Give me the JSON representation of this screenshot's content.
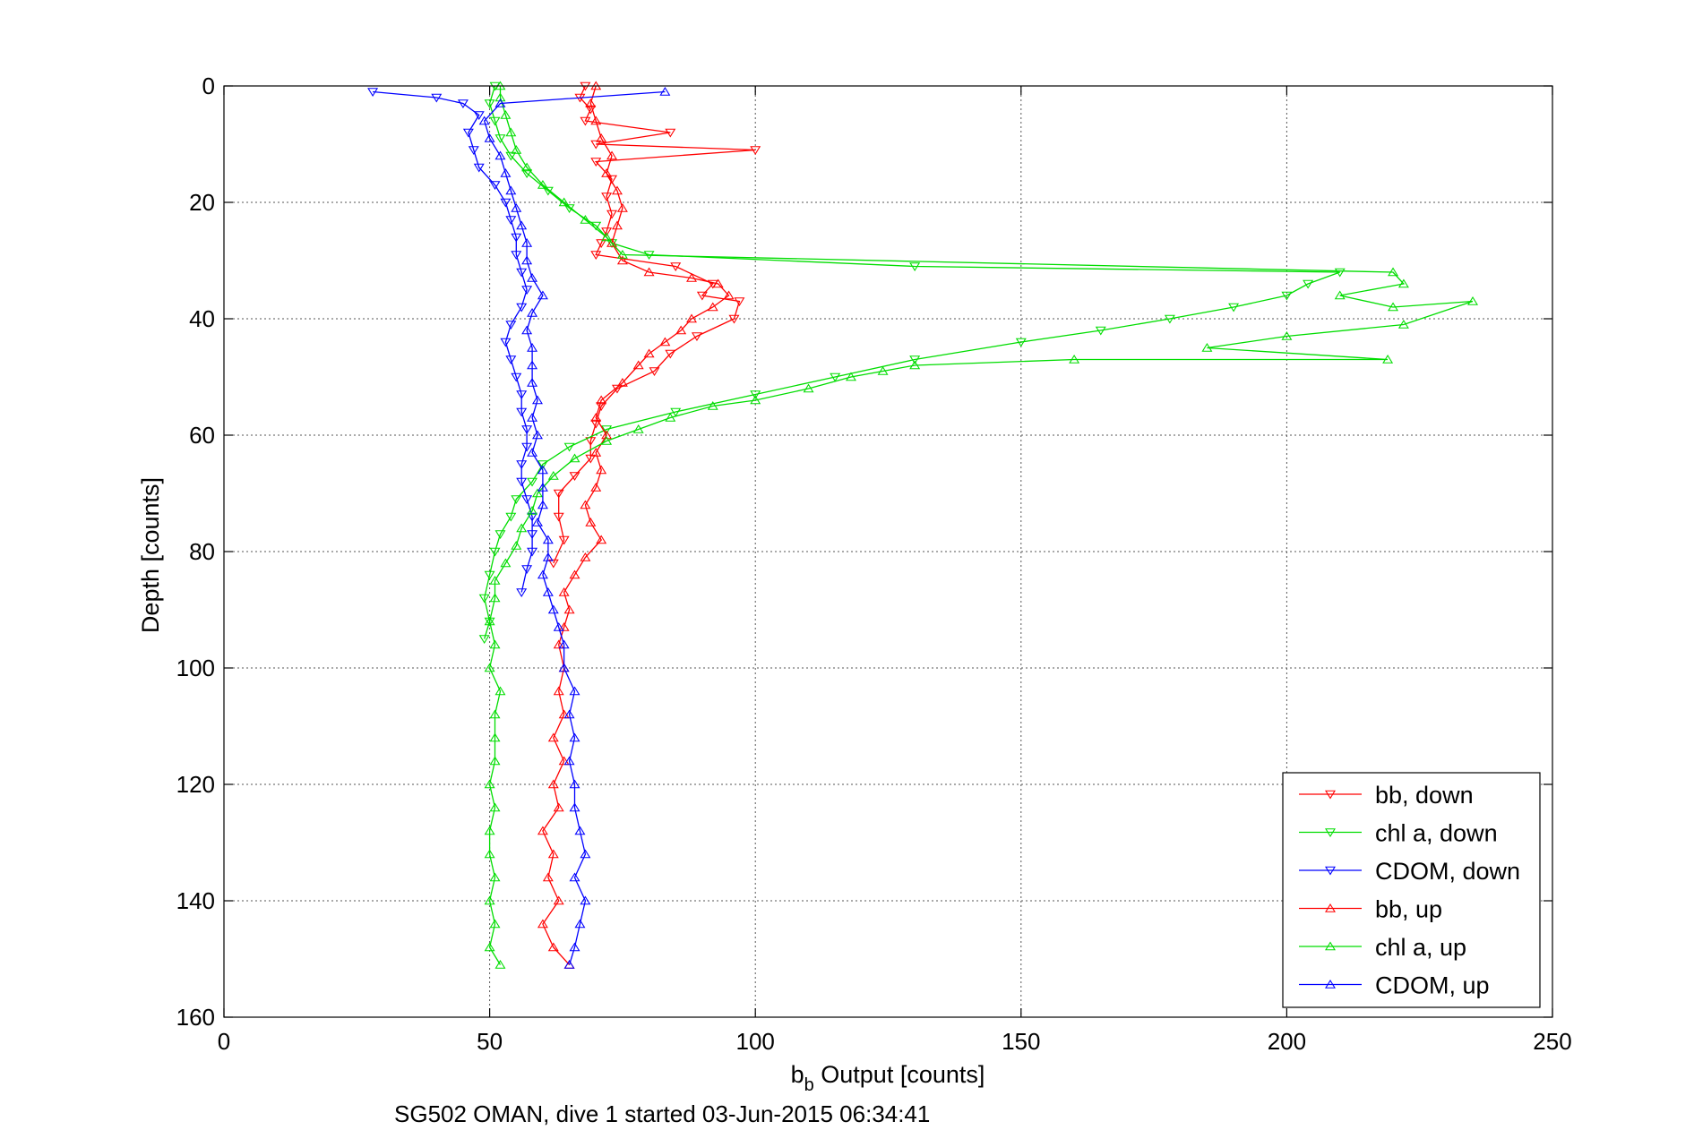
{
  "chart_data": {
    "type": "line",
    "xlabel": "b",
    "xlabel_sub": "b",
    "xlabel_rest": " Output [counts]",
    "ylabel": "Depth [counts]",
    "caption": "SG502 OMAN, dive 1 started 03-Jun-2015 06:34:41",
    "xlim": [
      0,
      250
    ],
    "ylim": [
      0,
      160
    ],
    "y_reversed": true,
    "grid": true,
    "legend_position": "bottom-right",
    "x_ticks": [
      "0",
      "50",
      "100",
      "150",
      "200",
      "250"
    ],
    "y_ticks": [
      "0",
      "20",
      "40",
      "60",
      "80",
      "100",
      "120",
      "140",
      "160"
    ],
    "series": [
      {
        "name": "bb, down",
        "color": "#ff0000",
        "marker": "triangle-down",
        "points": [
          [
            68,
            0
          ],
          [
            67,
            2
          ],
          [
            69,
            4
          ],
          [
            68,
            6
          ],
          [
            84,
            8
          ],
          [
            70,
            10
          ],
          [
            100,
            11
          ],
          [
            70,
            13
          ],
          [
            73,
            16
          ],
          [
            72,
            19
          ],
          [
            73,
            22
          ],
          [
            72,
            25
          ],
          [
            71,
            27
          ],
          [
            70,
            29
          ],
          [
            85,
            31
          ],
          [
            92,
            34
          ],
          [
            90,
            36
          ],
          [
            97,
            37
          ],
          [
            96,
            40
          ],
          [
            89,
            43
          ],
          [
            84,
            46
          ],
          [
            81,
            49
          ],
          [
            74,
            52
          ],
          [
            71,
            55
          ],
          [
            70,
            58
          ],
          [
            69,
            61
          ],
          [
            69,
            64
          ],
          [
            66,
            67
          ],
          [
            63,
            70
          ],
          [
            63,
            74
          ],
          [
            64,
            78
          ],
          [
            62,
            82
          ]
        ]
      },
      {
        "name": "chl a, down",
        "color": "#00dd00",
        "marker": "triangle-down",
        "points": [
          [
            51,
            0
          ],
          [
            50,
            3
          ],
          [
            51,
            6
          ],
          [
            52,
            9
          ],
          [
            54,
            12
          ],
          [
            57,
            15
          ],
          [
            61,
            18
          ],
          [
            65,
            21
          ],
          [
            70,
            24
          ],
          [
            73,
            27
          ],
          [
            80,
            29
          ],
          [
            130,
            31
          ],
          [
            210,
            32
          ],
          [
            204,
            34
          ],
          [
            200,
            36
          ],
          [
            190,
            38
          ],
          [
            178,
            40
          ],
          [
            165,
            42
          ],
          [
            150,
            44
          ],
          [
            130,
            47
          ],
          [
            115,
            50
          ],
          [
            100,
            53
          ],
          [
            85,
            56
          ],
          [
            72,
            59
          ],
          [
            65,
            62
          ],
          [
            60,
            65
          ],
          [
            58,
            68
          ],
          [
            55,
            71
          ],
          [
            54,
            74
          ],
          [
            52,
            77
          ],
          [
            51,
            80
          ],
          [
            50,
            84
          ],
          [
            49,
            88
          ],
          [
            50,
            92
          ],
          [
            49,
            95
          ]
        ]
      },
      {
        "name": "CDOM, down",
        "color": "#0000ff",
        "marker": "triangle-down",
        "points": [
          [
            28,
            1
          ],
          [
            40,
            2
          ],
          [
            45,
            3
          ],
          [
            48,
            5
          ],
          [
            46,
            8
          ],
          [
            47,
            11
          ],
          [
            48,
            14
          ],
          [
            51,
            17
          ],
          [
            53,
            20
          ],
          [
            54,
            23
          ],
          [
            55,
            26
          ],
          [
            55,
            29
          ],
          [
            56,
            32
          ],
          [
            57,
            35
          ],
          [
            56,
            38
          ],
          [
            54,
            41
          ],
          [
            53,
            44
          ],
          [
            54,
            47
          ],
          [
            55,
            50
          ],
          [
            56,
            53
          ],
          [
            56,
            56
          ],
          [
            57,
            59
          ],
          [
            57,
            62
          ],
          [
            56,
            65
          ],
          [
            56,
            68
          ],
          [
            57,
            71
          ],
          [
            58,
            74
          ],
          [
            58,
            77
          ],
          [
            58,
            80
          ],
          [
            57,
            83
          ],
          [
            56,
            87
          ]
        ]
      },
      {
        "name": "bb, up",
        "color": "#ff0000",
        "marker": "triangle-up",
        "points": [
          [
            65,
            151
          ],
          [
            62,
            148
          ],
          [
            60,
            144
          ],
          [
            63,
            140
          ],
          [
            61,
            136
          ],
          [
            62,
            132
          ],
          [
            60,
            128
          ],
          [
            63,
            124
          ],
          [
            62,
            120
          ],
          [
            64,
            116
          ],
          [
            62,
            112
          ],
          [
            64,
            108
          ],
          [
            63,
            104
          ],
          [
            64,
            100
          ],
          [
            63,
            96
          ],
          [
            64,
            93
          ],
          [
            65,
            90
          ],
          [
            64,
            87
          ],
          [
            66,
            84
          ],
          [
            68,
            81
          ],
          [
            71,
            78
          ],
          [
            69,
            75
          ],
          [
            68,
            72
          ],
          [
            70,
            69
          ],
          [
            71,
            66
          ],
          [
            70,
            63
          ],
          [
            72,
            60
          ],
          [
            70,
            57
          ],
          [
            71,
            54
          ],
          [
            75,
            51
          ],
          [
            78,
            48
          ],
          [
            80,
            46
          ],
          [
            83,
            44
          ],
          [
            86,
            42
          ],
          [
            88,
            40
          ],
          [
            92,
            38
          ],
          [
            95,
            36
          ],
          [
            93,
            34
          ],
          [
            88,
            33
          ],
          [
            80,
            32
          ],
          [
            75,
            30
          ],
          [
            73,
            27
          ],
          [
            74,
            24
          ],
          [
            75,
            21
          ],
          [
            74,
            18
          ],
          [
            72,
            15
          ],
          [
            73,
            12
          ],
          [
            71,
            9
          ],
          [
            70,
            6
          ],
          [
            69,
            3
          ],
          [
            70,
            0
          ]
        ]
      },
      {
        "name": "chl a, up",
        "color": "#00dd00",
        "marker": "triangle-up",
        "points": [
          [
            52,
            151
          ],
          [
            50,
            148
          ],
          [
            51,
            144
          ],
          [
            50,
            140
          ],
          [
            51,
            136
          ],
          [
            50,
            132
          ],
          [
            50,
            128
          ],
          [
            51,
            124
          ],
          [
            50,
            120
          ],
          [
            51,
            116
          ],
          [
            51,
            112
          ],
          [
            51,
            108
          ],
          [
            52,
            104
          ],
          [
            50,
            100
          ],
          [
            51,
            96
          ],
          [
            50,
            92
          ],
          [
            51,
            88
          ],
          [
            51,
            85
          ],
          [
            53,
            82
          ],
          [
            55,
            79
          ],
          [
            56,
            76
          ],
          [
            58,
            73
          ],
          [
            59,
            70
          ],
          [
            62,
            67
          ],
          [
            66,
            64
          ],
          [
            72,
            61
          ],
          [
            78,
            59
          ],
          [
            84,
            57
          ],
          [
            92,
            55
          ],
          [
            100,
            54
          ],
          [
            110,
            52
          ],
          [
            118,
            50
          ],
          [
            124,
            49
          ],
          [
            130,
            48
          ],
          [
            160,
            47
          ],
          [
            219,
            47
          ],
          [
            185,
            45
          ],
          [
            200,
            43
          ],
          [
            222,
            41
          ],
          [
            235,
            37
          ],
          [
            220,
            38
          ],
          [
            210,
            36
          ],
          [
            222,
            34
          ],
          [
            220,
            32
          ],
          [
            75,
            29
          ],
          [
            72,
            26
          ],
          [
            68,
            23
          ],
          [
            64,
            20
          ],
          [
            60,
            17
          ],
          [
            57,
            14
          ],
          [
            55,
            11
          ],
          [
            54,
            8
          ],
          [
            53,
            5
          ],
          [
            52,
            2
          ],
          [
            52,
            0
          ]
        ]
      },
      {
        "name": "CDOM, up",
        "color": "#0000ff",
        "marker": "triangle-up",
        "points": [
          [
            65,
            151
          ],
          [
            66,
            148
          ],
          [
            67,
            144
          ],
          [
            68,
            140
          ],
          [
            66,
            136
          ],
          [
            68,
            132
          ],
          [
            67,
            128
          ],
          [
            66,
            124
          ],
          [
            66,
            120
          ],
          [
            65,
            116
          ],
          [
            66,
            112
          ],
          [
            65,
            108
          ],
          [
            66,
            104
          ],
          [
            64,
            100
          ],
          [
            64,
            96
          ],
          [
            63,
            93
          ],
          [
            62,
            90
          ],
          [
            61,
            87
          ],
          [
            60,
            84
          ],
          [
            61,
            81
          ],
          [
            61,
            78
          ],
          [
            59,
            75
          ],
          [
            60,
            72
          ],
          [
            60,
            69
          ],
          [
            60,
            66
          ],
          [
            58,
            63
          ],
          [
            59,
            60
          ],
          [
            58,
            57
          ],
          [
            59,
            54
          ],
          [
            58,
            51
          ],
          [
            58,
            48
          ],
          [
            58,
            45
          ],
          [
            57,
            42
          ],
          [
            58,
            39
          ],
          [
            60,
            36
          ],
          [
            58,
            33
          ],
          [
            57,
            30
          ],
          [
            57,
            27
          ],
          [
            56,
            24
          ],
          [
            55,
            21
          ],
          [
            54,
            18
          ],
          [
            53,
            15
          ],
          [
            52,
            12
          ],
          [
            50,
            9
          ],
          [
            49,
            6
          ],
          [
            52,
            3
          ],
          [
            83,
            1
          ]
        ]
      }
    ]
  }
}
